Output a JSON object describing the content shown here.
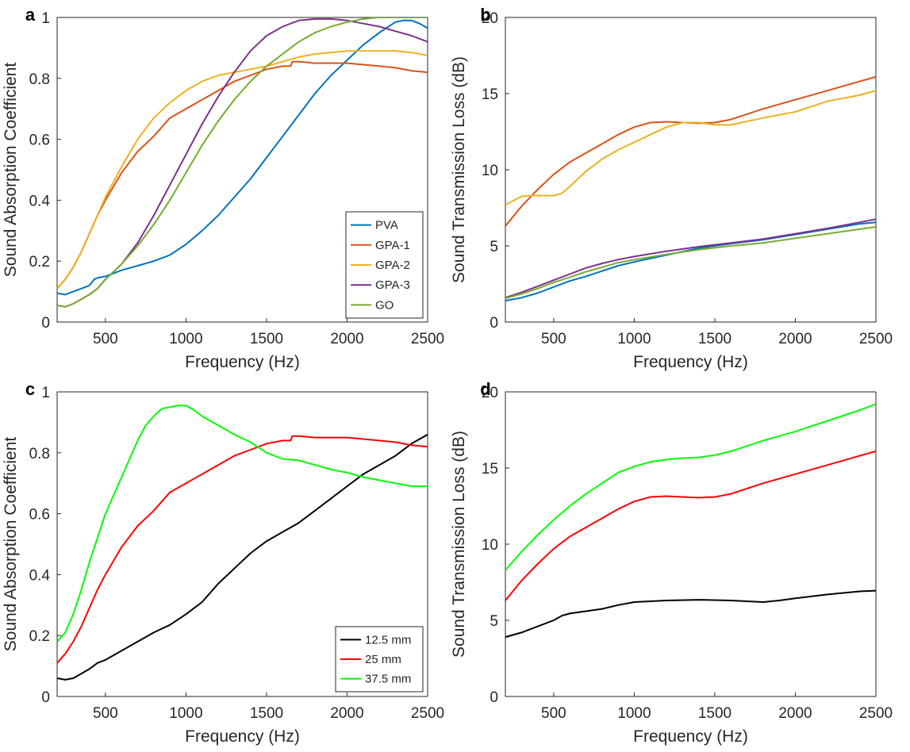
{
  "chart_data": [
    {
      "panel": "a",
      "type": "line",
      "xlabel": "Frequency (Hz)",
      "ylabel": "Sound Absorption Coefficient",
      "xlim": [
        200,
        2500
      ],
      "ylim": [
        0,
        1
      ],
      "xticks": [
        "500",
        "1000",
        "1500",
        "2000",
        "2500"
      ],
      "yticks": [
        "0",
        "0.2",
        "0.4",
        "0.6",
        "0.8",
        "1"
      ],
      "legend": "bottom-right",
      "grid": false,
      "series": [
        {
          "name": "PVA",
          "color": "#0072BD",
          "x": [
            200,
            250,
            300,
            350,
            400,
            430,
            450,
            500,
            600,
            700,
            800,
            900,
            1000,
            1100,
            1200,
            1300,
            1400,
            1500,
            1600,
            1700,
            1800,
            1900,
            2000,
            2100,
            2200,
            2300,
            2350,
            2400,
            2450,
            2500
          ],
          "y": [
            0.095,
            0.09,
            0.1,
            0.11,
            0.12,
            0.14,
            0.145,
            0.15,
            0.17,
            0.185,
            0.2,
            0.22,
            0.255,
            0.3,
            0.35,
            0.41,
            0.47,
            0.54,
            0.61,
            0.68,
            0.75,
            0.81,
            0.86,
            0.91,
            0.95,
            0.985,
            0.99,
            0.99,
            0.98,
            0.965
          ]
        },
        {
          "name": "GPA-1",
          "color": "#D95319",
          "x": [
            200,
            250,
            300,
            350,
            400,
            450,
            500,
            600,
            700,
            800,
            900,
            1000,
            1100,
            1200,
            1300,
            1400,
            1500,
            1600,
            1650,
            1660,
            1700,
            1800,
            1900,
            2000,
            2100,
            2200,
            2300,
            2400,
            2500
          ],
          "y": [
            0.11,
            0.14,
            0.18,
            0.23,
            0.29,
            0.35,
            0.4,
            0.49,
            0.56,
            0.61,
            0.67,
            0.7,
            0.73,
            0.76,
            0.79,
            0.81,
            0.83,
            0.84,
            0.84,
            0.855,
            0.855,
            0.85,
            0.85,
            0.85,
            0.845,
            0.84,
            0.835,
            0.825,
            0.82
          ]
        },
        {
          "name": "GPA-2",
          "color": "#EDB120",
          "x": [
            200,
            250,
            300,
            350,
            400,
            450,
            500,
            600,
            700,
            800,
            900,
            1000,
            1100,
            1200,
            1300,
            1400,
            1500,
            1600,
            1700,
            1800,
            1900,
            2000,
            2100,
            2200,
            2300,
            2400,
            2500
          ],
          "y": [
            0.11,
            0.14,
            0.18,
            0.23,
            0.29,
            0.35,
            0.41,
            0.51,
            0.6,
            0.67,
            0.72,
            0.76,
            0.79,
            0.81,
            0.82,
            0.83,
            0.84,
            0.855,
            0.87,
            0.88,
            0.885,
            0.89,
            0.89,
            0.89,
            0.89,
            0.885,
            0.875
          ]
        },
        {
          "name": "GPA-3",
          "color": "#7E2F8E",
          "x": [
            200,
            250,
            300,
            350,
            400,
            450,
            500,
            600,
            700,
            800,
            900,
            1000,
            1100,
            1200,
            1300,
            1400,
            1500,
            1600,
            1700,
            1800,
            1900,
            2000,
            2100,
            2200,
            2300,
            2400,
            2500
          ],
          "y": [
            0.055,
            0.05,
            0.06,
            0.075,
            0.09,
            0.11,
            0.14,
            0.19,
            0.26,
            0.35,
            0.45,
            0.55,
            0.65,
            0.74,
            0.82,
            0.89,
            0.94,
            0.97,
            0.99,
            0.995,
            0.995,
            0.99,
            0.98,
            0.97,
            0.955,
            0.94,
            0.92
          ]
        },
        {
          "name": "GO",
          "color": "#77AC30",
          "x": [
            200,
            250,
            300,
            350,
            400,
            450,
            500,
            600,
            700,
            800,
            900,
            1000,
            1100,
            1200,
            1300,
            1400,
            1500,
            1600,
            1700,
            1800,
            1900,
            2000,
            2100,
            2200,
            2300,
            2400,
            2500
          ],
          "y": [
            0.055,
            0.05,
            0.06,
            0.075,
            0.09,
            0.11,
            0.14,
            0.19,
            0.25,
            0.32,
            0.4,
            0.49,
            0.58,
            0.66,
            0.73,
            0.79,
            0.84,
            0.88,
            0.92,
            0.95,
            0.97,
            0.985,
            0.995,
            1.0,
            1.0,
            1.0,
            1.0
          ]
        }
      ]
    },
    {
      "panel": "b",
      "type": "line",
      "xlabel": "Frequency (Hz)",
      "ylabel": "Sound Transmission Loss (dB)",
      "xlim": [
        200,
        2500
      ],
      "ylim": [
        0,
        20
      ],
      "xticks": [
        "500",
        "1000",
        "1500",
        "2000",
        "2500"
      ],
      "yticks": [
        "0",
        "5",
        "10",
        "15",
        "20"
      ],
      "grid": false,
      "series": [
        {
          "color": "#0072BD",
          "x": [
            200,
            300,
            400,
            500,
            600,
            700,
            800,
            900,
            1000,
            1200,
            1400,
            1600,
            1800,
            2000,
            2200,
            2400,
            2500
          ],
          "y": [
            1.4,
            1.6,
            1.9,
            2.3,
            2.7,
            3.0,
            3.35,
            3.7,
            3.95,
            4.4,
            4.85,
            5.15,
            5.4,
            5.75,
            6.1,
            6.45,
            6.55
          ]
        },
        {
          "color": "#D95319",
          "x": [
            200,
            300,
            400,
            500,
            600,
            700,
            800,
            900,
            1000,
            1100,
            1200,
            1300,
            1400,
            1500,
            1600,
            1800,
            2000,
            2200,
            2400,
            2500
          ],
          "y": [
            6.3,
            7.6,
            8.7,
            9.7,
            10.5,
            11.1,
            11.7,
            12.3,
            12.8,
            13.1,
            13.15,
            13.1,
            13.05,
            13.1,
            13.3,
            14.0,
            14.6,
            15.2,
            15.8,
            16.1
          ]
        },
        {
          "color": "#EDB120",
          "x": [
            200,
            300,
            350,
            400,
            450,
            500,
            550,
            600,
            700,
            800,
            900,
            1000,
            1100,
            1200,
            1300,
            1400,
            1500,
            1600,
            1800,
            2000,
            2200,
            2400,
            2500
          ],
          "y": [
            7.7,
            8.25,
            8.3,
            8.3,
            8.3,
            8.3,
            8.45,
            8.9,
            9.9,
            10.7,
            11.3,
            11.8,
            12.3,
            12.8,
            13.1,
            13.1,
            12.95,
            12.95,
            13.4,
            13.8,
            14.5,
            14.9,
            15.2
          ]
        },
        {
          "color": "#7E2F8E",
          "x": [
            200,
            300,
            400,
            500,
            600,
            700,
            800,
            900,
            1000,
            1200,
            1400,
            1600,
            1800,
            2000,
            2200,
            2400,
            2500
          ],
          "y": [
            1.6,
            1.95,
            2.35,
            2.75,
            3.15,
            3.55,
            3.85,
            4.1,
            4.3,
            4.65,
            4.95,
            5.2,
            5.45,
            5.8,
            6.15,
            6.55,
            6.75
          ]
        },
        {
          "color": "#77AC30",
          "x": [
            200,
            300,
            400,
            500,
            600,
            700,
            800,
            900,
            1000,
            1200,
            1400,
            1600,
            1800,
            2000,
            2200,
            2400,
            2500
          ],
          "y": [
            1.55,
            1.85,
            2.2,
            2.6,
            2.95,
            3.3,
            3.6,
            3.9,
            4.1,
            4.45,
            4.75,
            5.0,
            5.2,
            5.5,
            5.8,
            6.1,
            6.25
          ]
        }
      ]
    },
    {
      "panel": "c",
      "type": "line",
      "xlabel": "Frequency (Hz)",
      "ylabel": "Sound Absorption Coefficient",
      "xlim": [
        200,
        2500
      ],
      "ylim": [
        0,
        1
      ],
      "xticks": [
        "500",
        "1000",
        "1500",
        "2000",
        "2500"
      ],
      "yticks": [
        "0",
        "0.2",
        "0.4",
        "0.6",
        "0.8",
        "1"
      ],
      "legend": "bottom-right",
      "grid": false,
      "series": [
        {
          "name": "12.5 mm",
          "color": "#000000",
          "x": [
            200,
            250,
            300,
            350,
            400,
            450,
            500,
            600,
            700,
            800,
            900,
            1000,
            1100,
            1200,
            1300,
            1400,
            1500,
            1600,
            1700,
            1800,
            1900,
            2000,
            2100,
            2200,
            2300,
            2400,
            2500
          ],
          "y": [
            0.06,
            0.055,
            0.06,
            0.075,
            0.09,
            0.11,
            0.12,
            0.15,
            0.18,
            0.21,
            0.235,
            0.27,
            0.31,
            0.37,
            0.42,
            0.47,
            0.51,
            0.54,
            0.57,
            0.61,
            0.65,
            0.69,
            0.73,
            0.76,
            0.79,
            0.83,
            0.86
          ]
        },
        {
          "name": "25 mm",
          "color": "#FF0000",
          "x": [
            200,
            250,
            300,
            350,
            400,
            450,
            500,
            600,
            700,
            800,
            900,
            1000,
            1100,
            1200,
            1300,
            1400,
            1500,
            1600,
            1650,
            1660,
            1700,
            1800,
            1900,
            2000,
            2100,
            2200,
            2300,
            2400,
            2500
          ],
          "y": [
            0.11,
            0.14,
            0.18,
            0.23,
            0.29,
            0.35,
            0.4,
            0.49,
            0.56,
            0.61,
            0.67,
            0.7,
            0.73,
            0.76,
            0.79,
            0.81,
            0.83,
            0.84,
            0.84,
            0.855,
            0.855,
            0.85,
            0.85,
            0.85,
            0.845,
            0.84,
            0.835,
            0.825,
            0.82
          ]
        },
        {
          "name": "37.5 mm",
          "color": "#00FF00",
          "x": [
            200,
            250,
            300,
            350,
            400,
            450,
            500,
            550,
            600,
            650,
            700,
            750,
            800,
            850,
            900,
            950,
            1000,
            1050,
            1100,
            1200,
            1300,
            1400,
            1500,
            1600,
            1700,
            1800,
            1900,
            2000,
            2100,
            2200,
            2300,
            2400,
            2500
          ],
          "y": [
            0.18,
            0.21,
            0.27,
            0.35,
            0.44,
            0.52,
            0.6,
            0.66,
            0.72,
            0.78,
            0.84,
            0.89,
            0.92,
            0.945,
            0.95,
            0.955,
            0.955,
            0.94,
            0.92,
            0.89,
            0.86,
            0.835,
            0.8,
            0.78,
            0.775,
            0.76,
            0.745,
            0.735,
            0.72,
            0.71,
            0.7,
            0.69,
            0.69
          ]
        }
      ]
    },
    {
      "panel": "d",
      "type": "line",
      "xlabel": "Frequency (Hz)",
      "ylabel": "Sound Transmission Loss (dB)",
      "xlim": [
        200,
        2500
      ],
      "ylim": [
        0,
        20
      ],
      "xticks": [
        "500",
        "1000",
        "1500",
        "2000",
        "2500"
      ],
      "yticks": [
        "0",
        "5",
        "10",
        "15",
        "20"
      ],
      "grid": false,
      "series": [
        {
          "color": "#000000",
          "x": [
            200,
            300,
            400,
            500,
            550,
            600,
            700,
            800,
            900,
            1000,
            1200,
            1400,
            1600,
            1700,
            1800,
            1900,
            2000,
            2200,
            2400,
            2500
          ],
          "y": [
            3.9,
            4.2,
            4.6,
            5.0,
            5.3,
            5.45,
            5.6,
            5.75,
            6.0,
            6.2,
            6.3,
            6.35,
            6.3,
            6.25,
            6.2,
            6.3,
            6.45,
            6.7,
            6.9,
            6.95
          ]
        },
        {
          "color": "#FF0000",
          "x": [
            200,
            300,
            400,
            500,
            600,
            700,
            800,
            900,
            1000,
            1100,
            1200,
            1300,
            1400,
            1500,
            1600,
            1800,
            2000,
            2200,
            2400,
            2500
          ],
          "y": [
            6.3,
            7.6,
            8.7,
            9.7,
            10.5,
            11.1,
            11.7,
            12.3,
            12.8,
            13.1,
            13.15,
            13.1,
            13.05,
            13.1,
            13.3,
            14.0,
            14.6,
            15.2,
            15.8,
            16.1
          ]
        },
        {
          "color": "#00FF00",
          "x": [
            200,
            300,
            400,
            500,
            600,
            700,
            800,
            900,
            1000,
            1100,
            1200,
            1300,
            1400,
            1500,
            1600,
            1800,
            2000,
            2200,
            2400,
            2500
          ],
          "y": [
            8.3,
            9.5,
            10.6,
            11.6,
            12.5,
            13.3,
            14.0,
            14.7,
            15.1,
            15.4,
            15.55,
            15.65,
            15.7,
            15.85,
            16.1,
            16.8,
            17.4,
            18.1,
            18.8,
            19.2
          ]
        }
      ]
    }
  ]
}
